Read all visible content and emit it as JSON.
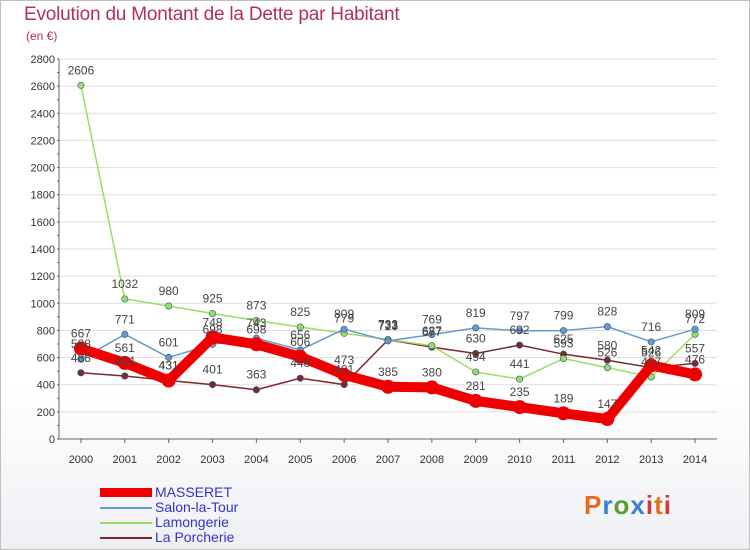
{
  "chart_data": {
    "type": "line",
    "title": "Evolution du Montant de la Dette par Habitant",
    "subtitle": "(en €)",
    "x": [
      "2000",
      "2001",
      "2002",
      "2003",
      "2004",
      "2005",
      "2006",
      "2007",
      "2008",
      "2009",
      "2010",
      "2011",
      "2012",
      "2013",
      "2014"
    ],
    "ylim": [
      0,
      2800
    ],
    "yticks": [
      0,
      200,
      400,
      600,
      800,
      1000,
      1200,
      1400,
      1600,
      1800,
      2000,
      2200,
      2400,
      2600,
      2800
    ],
    "grid": true,
    "legend_position": "bottom-left",
    "series": [
      {
        "name": "MASSERET",
        "color": "#ee0000",
        "values": [
          667,
          561,
          431,
          748,
          698,
          606,
          473,
          385,
          380,
          281,
          235,
          189,
          147,
          542,
          476
        ]
      },
      {
        "name": "Salon-la-Tour",
        "color": "#6699cc",
        "values": [
          588,
          771,
          601,
          698,
          743,
          656,
          809,
          723,
          769,
          819,
          797,
          799,
          828,
          716,
          809
        ]
      },
      {
        "name": "Lamongerie",
        "color": "#99dd66",
        "values": [
          2606,
          1032,
          980,
          925,
          873,
          825,
          779,
          733,
          687,
          494,
          441,
          593,
          526,
          457,
          772
        ]
      },
      {
        "name": "La Porcherie",
        "color": "#7a2a2a",
        "values": [
          488,
          464,
          431,
          401,
          363,
          448,
          401,
          731,
          677,
          630,
          692,
          625,
          580,
          526,
          557
        ]
      }
    ]
  },
  "logo": {
    "p": "P",
    "r": "r",
    "o": "o",
    "x": "x",
    "i": "i",
    "t": "t",
    "i2": "i"
  }
}
